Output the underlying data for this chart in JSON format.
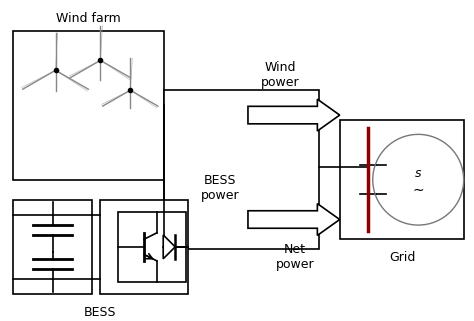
{
  "bg_color": "#ffffff",
  "line_color": "#000000",
  "red_color": "#8B0000",
  "labels": {
    "wind_farm": "Wind farm",
    "wind_power": "Wind\npower",
    "bess_power": "BESS\npower",
    "net_power": "Net\npower",
    "bess": "BESS",
    "grid": "Grid",
    "s_symbol": "s",
    "wave_symbol": "∼"
  },
  "turbine_color": "#888888",
  "lw": 1.2
}
